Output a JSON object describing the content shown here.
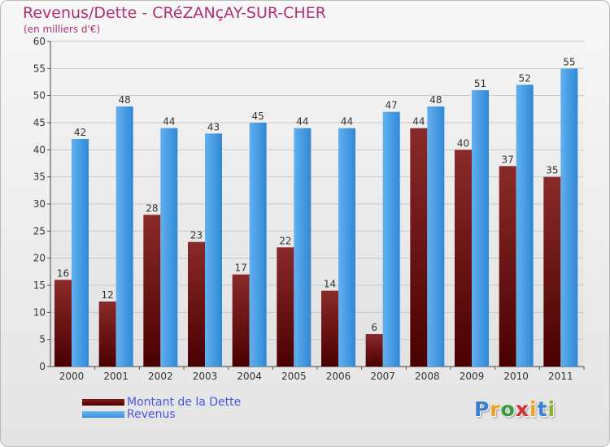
{
  "chart_data": {
    "type": "bar",
    "title": "Revenus/Dette - CRéZANçAY-SUR-CHER",
    "subtitle": "(en milliers d'€)",
    "categories": [
      "2000",
      "2001",
      "2002",
      "2003",
      "2004",
      "2005",
      "2006",
      "2007",
      "2008",
      "2009",
      "2010",
      "2011"
    ],
    "series": [
      {
        "name": "Montant de la Dette",
        "values": [
          16,
          12,
          28,
          23,
          17,
          22,
          14,
          6,
          44,
          40,
          37,
          35
        ],
        "color": "#7a1a1a"
      },
      {
        "name": "Revenus",
        "values": [
          42,
          48,
          44,
          43,
          45,
          44,
          44,
          47,
          48,
          51,
          52,
          55
        ],
        "color": "#4a9ee0"
      }
    ],
    "ylim": [
      0,
      60
    ],
    "yticks": [
      0,
      5,
      10,
      15,
      20,
      25,
      30,
      35,
      40,
      45,
      50,
      55,
      60
    ],
    "grid": true,
    "legend_position": "bottom-left"
  },
  "logo": {
    "letters": [
      "P",
      "r",
      "o",
      "x",
      "i",
      "t",
      "i"
    ],
    "colors": [
      "#3a7fd0",
      "#f0a020",
      "#3a9a40",
      "#d03030",
      "#f0a020",
      "#3a7fd0",
      "#8ab030"
    ]
  }
}
